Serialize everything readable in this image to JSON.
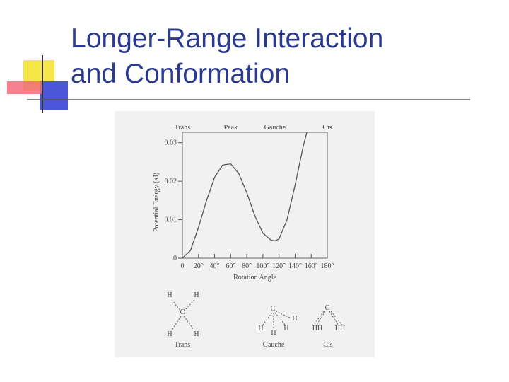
{
  "slide": {
    "title_lines": [
      "Longer-Range Interaction",
      "and Conformation"
    ]
  },
  "chart_data": {
    "type": "line",
    "x": [
      0,
      10,
      20,
      30,
      40,
      50,
      60,
      70,
      80,
      90,
      100,
      110,
      115,
      120,
      130,
      140,
      150,
      155
    ],
    "series": [
      {
        "color": "#555555",
        "values": [
          0,
          0.002,
          0.008,
          0.015,
          0.021,
          0.0242,
          0.0245,
          0.022,
          0.017,
          0.011,
          0.0065,
          0.0047,
          0.0045,
          0.005,
          0.01,
          0.019,
          0.029,
          0.033
        ]
      }
    ],
    "xlim": [
      0,
      180
    ],
    "ylim": [
      0,
      0.0327
    ],
    "xticks": [
      0,
      {
        "value": 20,
        "label": "20°"
      },
      {
        "value": 40,
        "label": "40°"
      },
      {
        "value": 60,
        "label": "60°"
      },
      {
        "value": 80,
        "label": "80°"
      },
      {
        "value": 100,
        "label": "100°"
      },
      {
        "value": 120,
        "label": "120°"
      },
      {
        "value": 140,
        "label": "140°"
      },
      {
        "value": 160,
        "label": "160°"
      },
      {
        "value": 180,
        "label": "180°"
      }
    ],
    "yticks": [
      0,
      0.01,
      0.02,
      0.03
    ],
    "x_label": "Rotation Angle",
    "y_label": "Potential Energy (aJ)",
    "top_labels": [
      {
        "text": "Trans",
        "x": 0
      },
      {
        "text": "Peak",
        "x": 60
      },
      {
        "text": "Gauche",
        "x": 115
      },
      {
        "text": "Cis",
        "x": 180
      }
    ],
    "molecules": [
      {
        "caption": "Trans",
        "atoms": [
          "H",
          "H",
          "C",
          "H",
          "H"
        ]
      },
      {
        "caption": "Gauche",
        "atoms": [
          "C",
          "H",
          "H",
          "H",
          "H"
        ]
      },
      {
        "caption": "Cis",
        "atoms": [
          "C",
          "HH",
          "HH"
        ]
      }
    ]
  }
}
